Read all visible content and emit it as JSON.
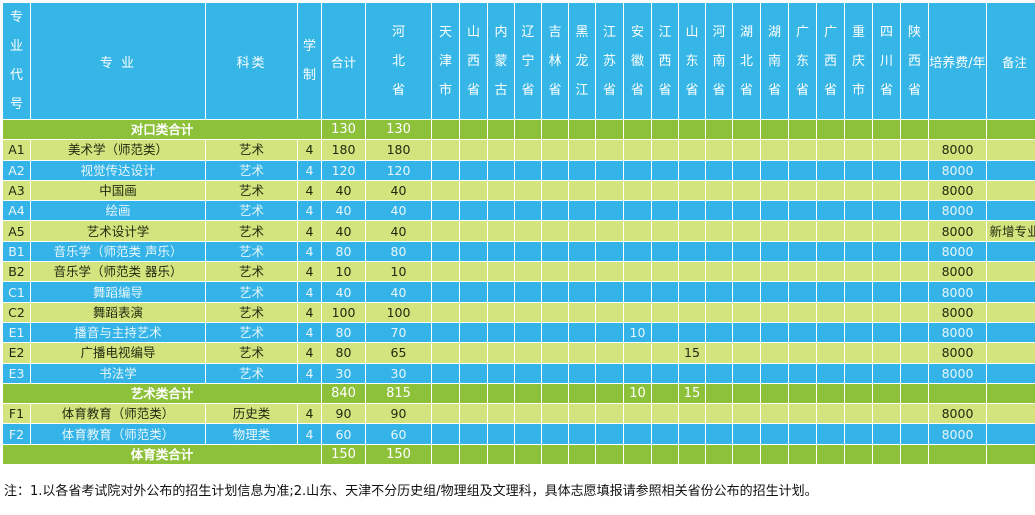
{
  "headers": {
    "code": "专业代号",
    "major": "专 业",
    "category": "科类",
    "years": "学制",
    "total": "合计",
    "provinces": [
      "河北省",
      "天津市",
      "山西省",
      "内蒙古",
      "辽宁省",
      "吉林省",
      "黑龙江",
      "江苏省",
      "安徽省",
      "江西省",
      "山东省",
      "河南省",
      "湖北省",
      "湖南省",
      "广东省",
      "广西省",
      "重庆市",
      "四川省",
      "陕西省"
    ],
    "fee": "培养费/年",
    "note": "备注"
  },
  "rows": [
    {
      "style": "sum",
      "label": "对口类合计",
      "total": "130",
      "hebei": "130",
      "anhui": "",
      "shandong": "",
      "fee": "",
      "note": ""
    },
    {
      "style": "lt",
      "code": "A1",
      "major": "美术学（师范类）",
      "category": "艺术",
      "years": "4",
      "total": "180",
      "hebei": "180",
      "anhui": "",
      "shandong": "",
      "fee": "8000",
      "note": ""
    },
    {
      "style": "bl",
      "code": "A2",
      "major": "视觉传达设计",
      "category": "艺术",
      "years": "4",
      "total": "120",
      "hebei": "120",
      "anhui": "",
      "shandong": "",
      "fee": "8000",
      "note": ""
    },
    {
      "style": "lt",
      "code": "A3",
      "major": "中国画",
      "category": "艺术",
      "years": "4",
      "total": "40",
      "hebei": "40",
      "anhui": "",
      "shandong": "",
      "fee": "8000",
      "note": ""
    },
    {
      "style": "bl",
      "code": "A4",
      "major": "绘画",
      "category": "艺术",
      "years": "4",
      "total": "40",
      "hebei": "40",
      "anhui": "",
      "shandong": "",
      "fee": "8000",
      "note": ""
    },
    {
      "style": "lt",
      "code": "A5",
      "major": "艺术设计学",
      "category": "艺术",
      "years": "4",
      "total": "40",
      "hebei": "40",
      "anhui": "",
      "shandong": "",
      "fee": "8000",
      "note": "新增专业"
    },
    {
      "style": "bl",
      "code": "B1",
      "major": "音乐学（师范类 声乐）",
      "category": "艺术",
      "years": "4",
      "total": "80",
      "hebei": "80",
      "anhui": "",
      "shandong": "",
      "fee": "8000",
      "note": ""
    },
    {
      "style": "lt",
      "code": "B2",
      "major": "音乐学（师范类 器乐）",
      "category": "艺术",
      "years": "4",
      "total": "10",
      "hebei": "10",
      "anhui": "",
      "shandong": "",
      "fee": "8000",
      "note": ""
    },
    {
      "style": "bl",
      "code": "C1",
      "major": "舞蹈编导",
      "category": "艺术",
      "years": "4",
      "total": "40",
      "hebei": "40",
      "anhui": "",
      "shandong": "",
      "fee": "8000",
      "note": ""
    },
    {
      "style": "lt",
      "code": "C2",
      "major": "舞蹈表演",
      "category": "艺术",
      "years": "4",
      "total": "100",
      "hebei": "100",
      "anhui": "",
      "shandong": "",
      "fee": "8000",
      "note": ""
    },
    {
      "style": "bl",
      "code": "E1",
      "major": "播音与主持艺术",
      "category": "艺术",
      "years": "4",
      "total": "80",
      "hebei": "70",
      "anhui": "10",
      "shandong": "",
      "fee": "8000",
      "note": ""
    },
    {
      "style": "lt",
      "code": "E2",
      "major": "广播电视编导",
      "category": "艺术",
      "years": "4",
      "total": "80",
      "hebei": "65",
      "anhui": "",
      "shandong": "15",
      "fee": "8000",
      "note": ""
    },
    {
      "style": "bl",
      "code": "E3",
      "major": "书法学",
      "category": "艺术",
      "years": "4",
      "total": "30",
      "hebei": "30",
      "anhui": "",
      "shandong": "",
      "fee": "8000",
      "note": ""
    },
    {
      "style": "sum",
      "label": "艺术类合计",
      "total": "840",
      "hebei": "815",
      "anhui": "10",
      "shandong": "15",
      "fee": "",
      "note": ""
    },
    {
      "style": "lt",
      "code": "F1",
      "major": "体育教育（师范类）",
      "category": "历史类",
      "years": "4",
      "total": "90",
      "hebei": "90",
      "anhui": "",
      "shandong": "",
      "fee": "8000",
      "note": ""
    },
    {
      "style": "bl",
      "code": "F2",
      "major": "体育教育（师范类）",
      "category": "物理类",
      "years": "4",
      "total": "60",
      "hebei": "60",
      "anhui": "",
      "shandong": "",
      "fee": "8000",
      "note": ""
    },
    {
      "style": "sum",
      "label": "体育类合计",
      "total": "150",
      "hebei": "150",
      "anhui": "",
      "shandong": "",
      "fee": "",
      "note": ""
    }
  ],
  "footnote": "注：1.以各省考试院对外公布的招生计划信息为准;2.山东、天津不分历史组/物理组及文理科，具体志愿填报请参照相关省份公布的招生计划。",
  "colors": {
    "header": "#35b6e6",
    "light_row": "#d3e37e",
    "blue_row": "#33b3e7",
    "sum_row": "#8ec13a"
  }
}
